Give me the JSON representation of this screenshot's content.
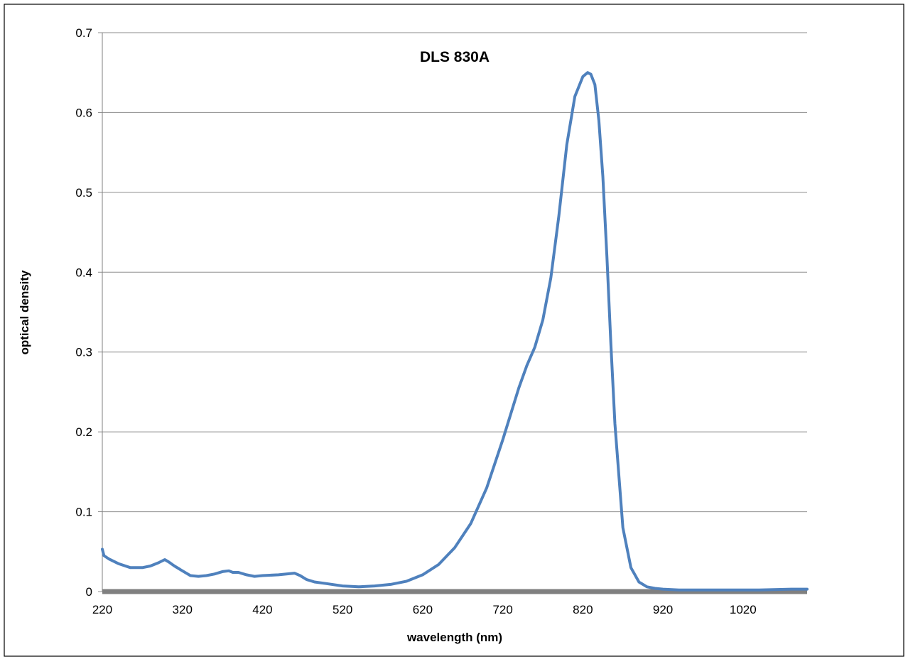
{
  "chart_data": {
    "type": "line",
    "title": "DLS 830A",
    "xlabel": "wavelength (nm)",
    "ylabel": "optical density",
    "xlim": [
      220,
      1100
    ],
    "ylim": [
      0,
      0.7
    ],
    "x_ticks": [
      "220",
      "320",
      "420",
      "520",
      "620",
      "720",
      "820",
      "920",
      "1020"
    ],
    "y_ticks": [
      "0",
      "0.1",
      "0.2",
      "0.3",
      "0.4",
      "0.5",
      "0.6",
      "0.7"
    ],
    "grid": true,
    "legend": "none",
    "series": [
      {
        "color": "#4f81bd",
        "x": [
          220,
          222,
          228,
          240,
          255,
          270,
          280,
          290,
          298,
          303,
          310,
          320,
          330,
          340,
          350,
          360,
          370,
          378,
          383,
          390,
          400,
          410,
          420,
          440,
          460,
          467,
          475,
          485,
          500,
          520,
          540,
          560,
          580,
          600,
          620,
          640,
          660,
          680,
          700,
          720,
          740,
          750,
          760,
          770,
          780,
          790,
          800,
          810,
          820,
          826,
          830,
          835,
          840,
          845,
          850,
          855,
          860,
          870,
          880,
          890,
          900,
          910,
          920,
          940,
          960,
          1000,
          1040,
          1080,
          1100
        ],
        "y": [
          0.053,
          0.045,
          0.041,
          0.035,
          0.03,
          0.03,
          0.032,
          0.036,
          0.04,
          0.037,
          0.032,
          0.026,
          0.02,
          0.019,
          0.02,
          0.022,
          0.025,
          0.026,
          0.024,
          0.024,
          0.021,
          0.019,
          0.02,
          0.021,
          0.023,
          0.02,
          0.015,
          0.012,
          0.01,
          0.007,
          0.006,
          0.007,
          0.009,
          0.013,
          0.021,
          0.034,
          0.055,
          0.085,
          0.13,
          0.19,
          0.255,
          0.283,
          0.306,
          0.34,
          0.393,
          0.47,
          0.56,
          0.62,
          0.645,
          0.65,
          0.648,
          0.635,
          0.59,
          0.52,
          0.42,
          0.31,
          0.21,
          0.08,
          0.03,
          0.012,
          0.006,
          0.004,
          0.003,
          0.002,
          0.002,
          0.002,
          0.002,
          0.003,
          0.003
        ]
      }
    ]
  }
}
